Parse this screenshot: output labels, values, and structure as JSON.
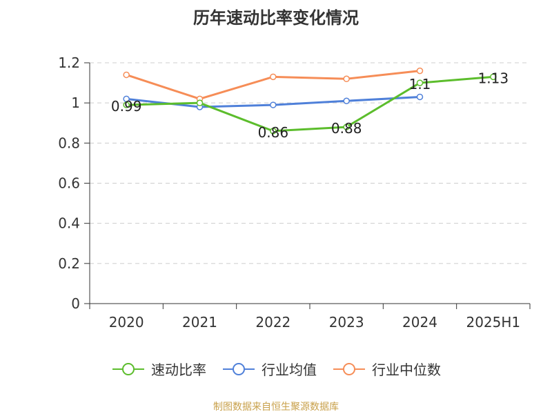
{
  "title": "历年速动比率变化情况",
  "source": "制图数据来自恒生聚源数据库",
  "colors": {
    "series_speed": "#5cbd2c",
    "series_avg": "#4f80d9",
    "series_median": "#f68d57",
    "axis": "#333333",
    "grid": "#cccccc"
  },
  "chart_data": {
    "type": "line",
    "title": "历年速动比率变化情况",
    "categories": [
      "2020",
      "2021",
      "2022",
      "2023",
      "2024",
      "2025H1"
    ],
    "ylim": [
      0,
      1.2
    ],
    "yticks": [
      "0",
      "0.2",
      "0.4",
      "0.6",
      "0.8",
      "1",
      "1.2"
    ],
    "grid": true,
    "legend_position": "bottom",
    "series": [
      {
        "name": "速动比率",
        "values": [
          0.99,
          1.0,
          0.86,
          0.88,
          1.1,
          1.13
        ],
        "labels": [
          "0.99",
          "",
          "0.86",
          "0.88",
          "1.1",
          "1.13"
        ],
        "color": "#5cbd2c"
      },
      {
        "name": "行业均值",
        "values": [
          1.02,
          0.98,
          0.99,
          1.01,
          1.03,
          null
        ],
        "labels": [
          "",
          "",
          "",
          "",
          "",
          ""
        ],
        "color": "#4f80d9"
      },
      {
        "name": "行业中位数",
        "values": [
          1.14,
          1.02,
          1.13,
          1.12,
          1.16,
          null
        ],
        "labels": [
          "",
          "",
          "",
          "",
          "",
          ""
        ],
        "color": "#f68d57"
      }
    ]
  }
}
